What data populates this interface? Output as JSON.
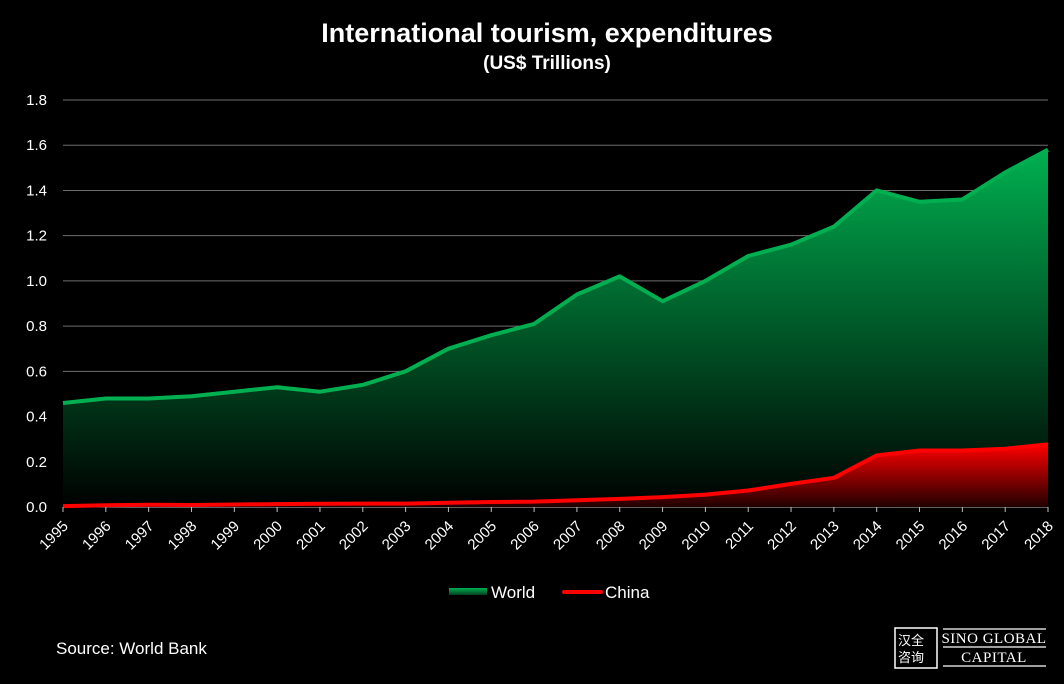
{
  "chart_data": {
    "type": "area",
    "title": "International tourism, expenditures",
    "subtitle": "(US$ Trillions)",
    "xlabel": "",
    "ylabel": "",
    "x": [
      "1995",
      "1996",
      "1997",
      "1998",
      "1999",
      "2000",
      "2001",
      "2002",
      "2003",
      "2004",
      "2005",
      "2006",
      "2007",
      "2008",
      "2009",
      "2010",
      "2011",
      "2012",
      "2013",
      "2014",
      "2015",
      "2016",
      "2017",
      "2018"
    ],
    "ylim": [
      0,
      1.8
    ],
    "yticks": [
      "0.0",
      "0.2",
      "0.4",
      "0.6",
      "0.8",
      "1.0",
      "1.2",
      "1.4",
      "1.6",
      "1.8"
    ],
    "grid": true,
    "legend_position": "bottom-center",
    "series": [
      {
        "name": "World",
        "color": "#00b050",
        "values": [
          0.46,
          0.48,
          0.48,
          0.49,
          0.51,
          0.53,
          0.51,
          0.54,
          0.6,
          0.7,
          0.76,
          0.81,
          0.94,
          1.02,
          0.91,
          1.0,
          1.11,
          1.16,
          1.24,
          1.4,
          1.35,
          1.36,
          1.48,
          1.58
        ]
      },
      {
        "name": "China",
        "color": "#ff0000",
        "values": [
          0.004,
          0.008,
          0.01,
          0.009,
          0.011,
          0.013,
          0.014,
          0.015,
          0.015,
          0.019,
          0.022,
          0.024,
          0.03,
          0.036,
          0.044,
          0.055,
          0.073,
          0.102,
          0.129,
          0.228,
          0.25,
          0.25,
          0.258,
          0.277
        ]
      }
    ]
  },
  "source": "Source: World Bank",
  "logo": {
    "line1": "SINO GLOBAL",
    "line2": "CAPITAL",
    "seal": "汉全咨询"
  }
}
